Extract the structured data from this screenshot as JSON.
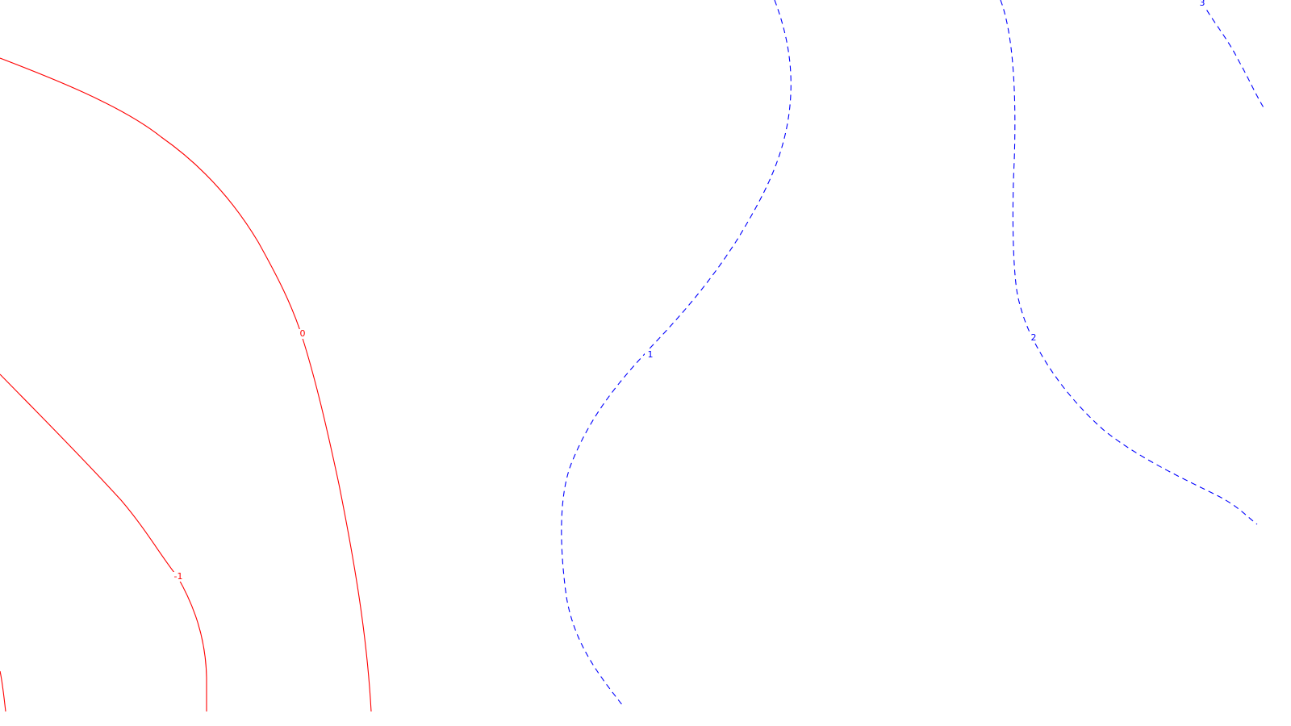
{
  "chart_data": {
    "type": "contour",
    "title": "",
    "xlabel": "",
    "ylabel": "",
    "grid": false,
    "legend": "none",
    "colors": {
      "non_positive": "#ff0000",
      "positive": "#0000ff"
    },
    "levels": [
      {
        "value": -1,
        "label": "-1",
        "color": "#ff0000",
        "dash": "solid"
      },
      {
        "value": 0,
        "label": "0",
        "color": "#ff0000",
        "dash": "solid"
      },
      {
        "value": 1,
        "label": "1",
        "color": "#0000ff",
        "dash": "dashed"
      },
      {
        "value": 2,
        "label": "2",
        "color": "#0000ff",
        "dash": "dashed"
      },
      {
        "value": 3,
        "label": "3",
        "color": "#0000ff",
        "dash": "dashed"
      }
    ]
  }
}
